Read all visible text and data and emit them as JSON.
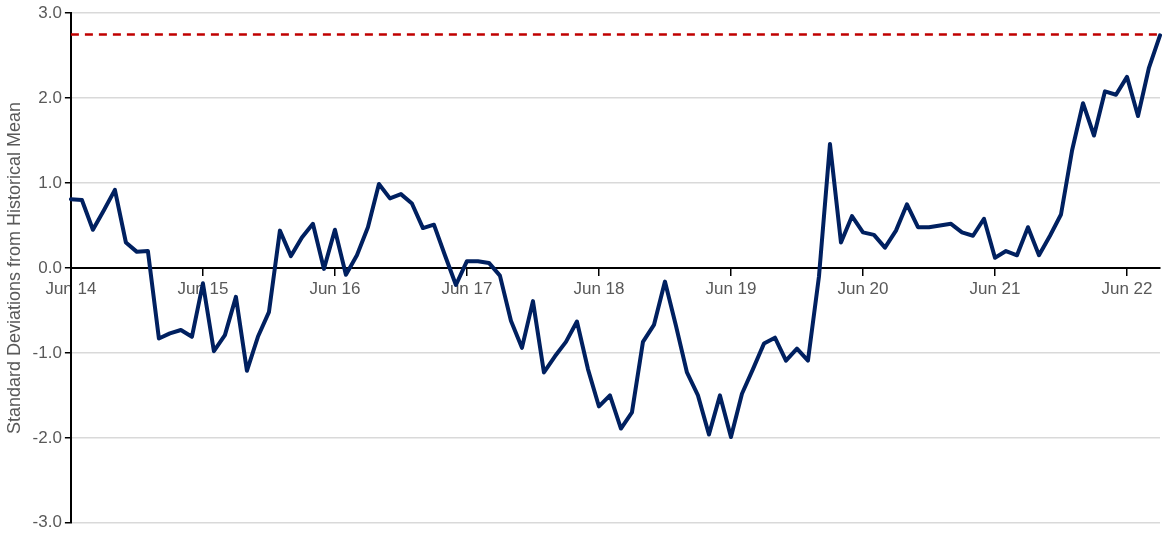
{
  "chart_data": {
    "type": "line",
    "ylabel": "Standard Deviations from Historical Mean",
    "categories": [
      "Jun 14",
      null,
      null,
      null,
      null,
      null,
      null,
      null,
      null,
      null,
      null,
      null,
      "Jun 15",
      null,
      null,
      null,
      null,
      null,
      null,
      null,
      null,
      null,
      null,
      null,
      "Jun 16",
      null,
      null,
      null,
      null,
      null,
      null,
      null,
      null,
      null,
      null,
      null,
      "Jun 17",
      null,
      null,
      null,
      null,
      null,
      null,
      null,
      null,
      null,
      null,
      null,
      "Jun 18",
      null,
      null,
      null,
      null,
      null,
      null,
      null,
      null,
      null,
      null,
      null,
      "Jun 19",
      null,
      null,
      null,
      null,
      null,
      null,
      null,
      null,
      null,
      null,
      null,
      "Jun 20",
      null,
      null,
      null,
      null,
      null,
      null,
      null,
      null,
      null,
      null,
      null,
      "Jun 21",
      null,
      null,
      null,
      null,
      null,
      null,
      null,
      null,
      null,
      null,
      null,
      "Jun 22",
      null,
      null,
      null
    ],
    "series": [
      {
        "color": "#002060",
        "values": [
          0.81,
          0.8,
          0.45,
          0.68,
          0.92,
          0.3,
          0.19,
          0.2,
          -0.83,
          -0.77,
          -0.73,
          -0.81,
          -0.18,
          -0.98,
          -0.79,
          -0.34,
          -1.21,
          -0.81,
          -0.52,
          0.44,
          0.14,
          0.36,
          0.52,
          -0.01,
          0.45,
          -0.08,
          0.15,
          0.48,
          0.99,
          0.82,
          0.87,
          0.76,
          0.47,
          0.51,
          0.15,
          -0.2,
          0.08,
          0.08,
          0.06,
          -0.09,
          -0.62,
          -0.94,
          -0.39,
          -1.23,
          -1.04,
          -0.87,
          -0.63,
          -1.19,
          -1.63,
          -1.5,
          -1.89,
          -1.7,
          -0.87,
          -0.67,
          -0.16,
          -0.68,
          -1.23,
          -1.5,
          -1.96,
          -1.5,
          -1.99,
          -1.48,
          -1.19,
          -0.89,
          -0.82,
          -1.09,
          -0.95,
          -1.09,
          -0.1,
          1.46,
          0.3,
          0.61,
          0.42,
          0.39,
          0.24,
          0.44,
          0.75,
          0.48,
          0.48,
          0.5,
          0.52,
          0.42,
          0.38,
          0.58,
          0.12,
          0.2,
          0.15,
          0.48,
          0.15,
          0.38,
          0.63,
          1.38,
          1.94,
          1.56,
          2.08,
          2.04,
          2.25,
          1.79,
          2.36,
          2.74
        ]
      }
    ],
    "ylim": [
      -3,
      3
    ],
    "yticks": [
      {
        "value": -3,
        "label": "-3.0"
      },
      {
        "value": -2,
        "label": "-2.0"
      },
      {
        "value": -1,
        "label": "-1.0"
      },
      {
        "value": 0,
        "label": "0.0"
      },
      {
        "value": 1,
        "label": "1.0"
      },
      {
        "value": 2,
        "label": "2.0"
      },
      {
        "value": 3,
        "label": "3.0"
      }
    ],
    "ref_lines": [
      {
        "axis": "y",
        "value": 2.75,
        "color": "#c00000",
        "line_style": "dashed"
      }
    ],
    "grid": "y",
    "legend": false,
    "marker": "none",
    "line_style": "solid"
  }
}
